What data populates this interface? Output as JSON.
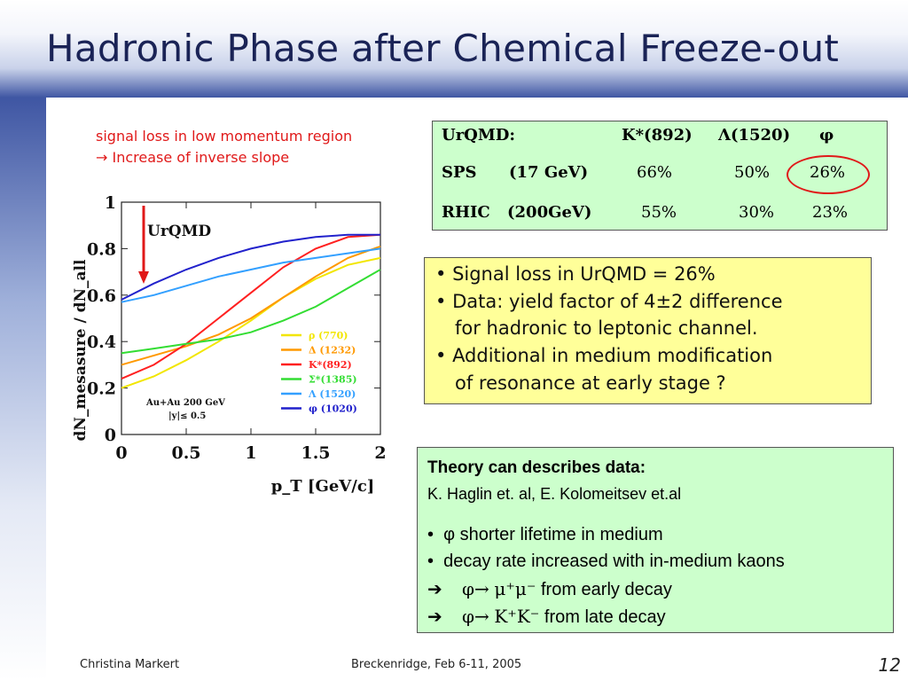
{
  "slide": {
    "title": "Hadronic Phase after Chemical Freeze-out",
    "page_number": "12"
  },
  "note": {
    "line1": "signal loss in low momentum region",
    "line2": "→ Increase of inverse slope"
  },
  "table": {
    "header": {
      "label": "UrQMD:",
      "col1": "K*(892)",
      "col2": "Λ(1520)",
      "col3": "φ"
    },
    "rows": [
      {
        "label": "SPS",
        "energy": "(17 GeV)",
        "v1": "66%",
        "v2": "50%",
        "v3": "26%"
      },
      {
        "label": "RHIC",
        "energy": "(200GeV)",
        "v1": "55%",
        "v2": "30%",
        "v3": "23%"
      }
    ],
    "highlight_color": "#e01919"
  },
  "signal_box": {
    "bullets": [
      {
        "line1": "Signal loss in UrQMD = 26%"
      },
      {
        "line1": "Data: yield factor of 4±2 difference",
        "line2": "for hadronic to leptonic channel."
      },
      {
        "line1": "Additional in medium modification",
        "line2": "of resonance at early stage ?"
      }
    ]
  },
  "theory": {
    "heading": "Theory can describes data:",
    "authors": "K. Haglin et. al, E. Kolomeitsev et.al",
    "bullet1": "φ shorter lifetime in medium",
    "bullet2": "decay rate increased with in-medium kaons",
    "arrow1": {
      "phi": "φ→",
      "formula": "μ⁺μ⁻",
      "text": " from early decay"
    },
    "arrow2": {
      "phi": "φ→",
      "formula": "K⁺K⁻",
      "text": " from late decay"
    }
  },
  "footer": {
    "author": "Christina Markert",
    "event": "Breckenridge, Feb 6-11, 2005"
  },
  "chart_data": {
    "type": "line",
    "title": "",
    "ylabel": "dN_mesasure / dN_all",
    "xlabel": "p_T [GeV/c]",
    "xlim": [
      0,
      2
    ],
    "ylim": [
      0,
      1
    ],
    "xticks": [
      "0",
      "0.5",
      "1",
      "1.5",
      "2"
    ],
    "yticks": [
      "0",
      "0.2",
      "0.4",
      "0.6",
      "0.8",
      "1"
    ],
    "annotation": "UrQMD",
    "info_line1": "Au+Au 200 GeV",
    "info_line2": "|y|≤ 0.5",
    "series": [
      {
        "name": "ρ (770)",
        "color": "#f2e600",
        "x": [
          0,
          0.25,
          0.5,
          0.75,
          1,
          1.25,
          1.5,
          1.75,
          2
        ],
        "y": [
          0.2,
          0.25,
          0.32,
          0.4,
          0.49,
          0.59,
          0.67,
          0.73,
          0.76
        ]
      },
      {
        "name": "Δ (1232)",
        "color": "#ff9900",
        "x": [
          0,
          0.25,
          0.5,
          0.75,
          1,
          1.25,
          1.5,
          1.75,
          2
        ],
        "y": [
          0.3,
          0.34,
          0.38,
          0.43,
          0.5,
          0.59,
          0.68,
          0.76,
          0.81
        ]
      },
      {
        "name": "K*(892)",
        "color": "#ff2020",
        "x": [
          0,
          0.25,
          0.5,
          0.75,
          1,
          1.25,
          1.5,
          1.75,
          2
        ],
        "y": [
          0.24,
          0.3,
          0.39,
          0.5,
          0.61,
          0.72,
          0.8,
          0.85,
          0.86
        ]
      },
      {
        "name": "Σ*(1385)",
        "color": "#33dd33",
        "x": [
          0,
          0.25,
          0.5,
          0.75,
          1,
          1.25,
          1.5,
          1.75,
          2
        ],
        "y": [
          0.35,
          0.37,
          0.39,
          0.41,
          0.44,
          0.49,
          0.55,
          0.63,
          0.71
        ]
      },
      {
        "name": "Λ (1520)",
        "color": "#33a0ff",
        "x": [
          0,
          0.25,
          0.5,
          0.75,
          1,
          1.25,
          1.5,
          1.75,
          2
        ],
        "y": [
          0.57,
          0.6,
          0.64,
          0.68,
          0.71,
          0.74,
          0.76,
          0.78,
          0.8
        ]
      },
      {
        "name": "φ (1020)",
        "color": "#2222cc",
        "x": [
          0,
          0.25,
          0.5,
          0.75,
          1,
          1.25,
          1.5,
          1.75,
          2
        ],
        "y": [
          0.58,
          0.65,
          0.71,
          0.76,
          0.8,
          0.83,
          0.85,
          0.86,
          0.86
        ]
      }
    ]
  }
}
